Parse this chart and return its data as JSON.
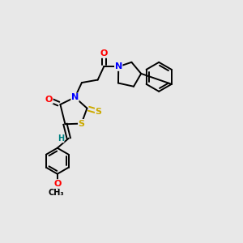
{
  "bg_color": "#e8e8e8",
  "atom_colors": {
    "O": "#ff0000",
    "N": "#0000ff",
    "S": "#ccaa00",
    "C": "#000000",
    "H": "#008080"
  },
  "lw": 1.4,
  "font_size": 8,
  "fig_size": [
    3.0,
    3.0
  ],
  "dpi": 100
}
